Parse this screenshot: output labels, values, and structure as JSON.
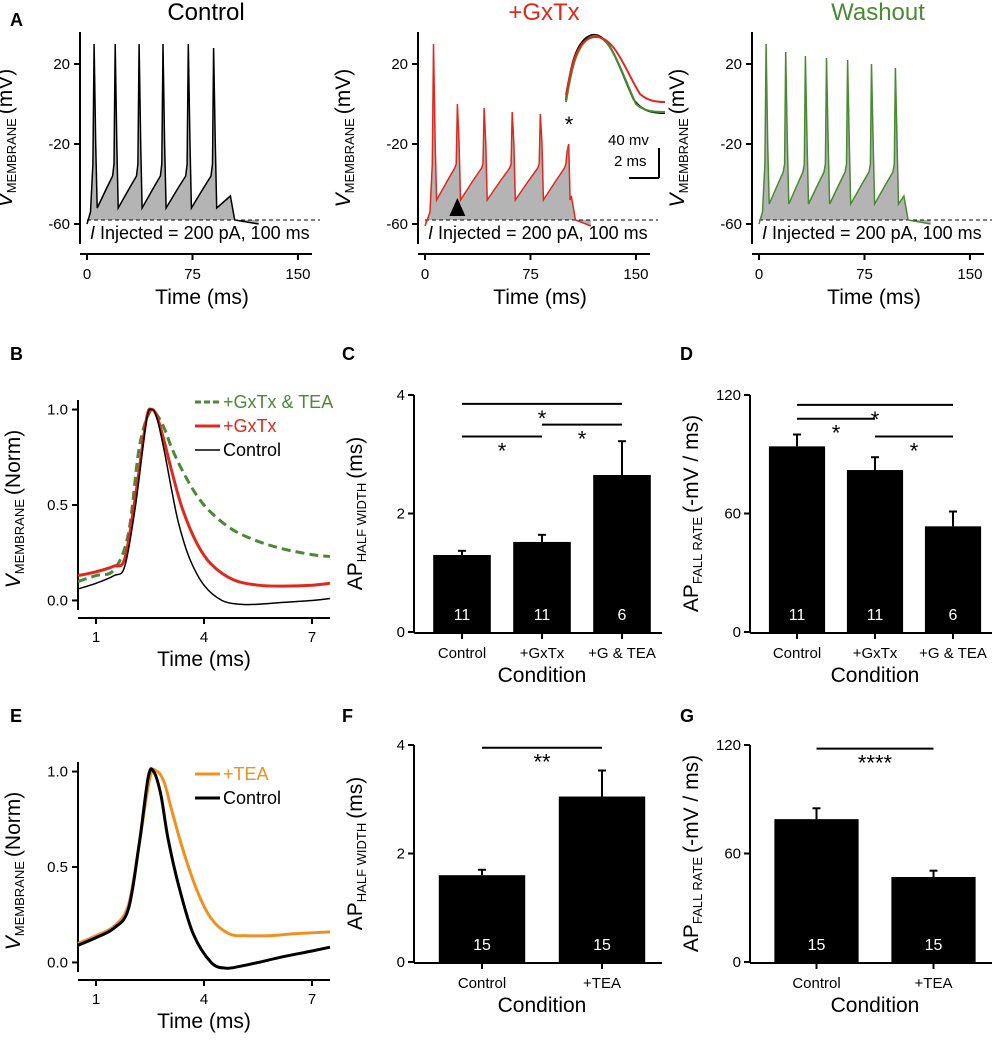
{
  "colors": {
    "control": "#000000",
    "gxtx": "#e0281e",
    "washout": "#4a8a32",
    "tea": "#f0901e",
    "fill": "#b4b4b4"
  },
  "chart_data": [
    {
      "panel": "A",
      "type": "line",
      "title": "Control",
      "title_color": "#000000",
      "color": "#000000",
      "xlabel": "Time (ms)",
      "ylabel": "V",
      "ylabel_sub": "MEMBRANE",
      "ylabel_unit": "(mV)",
      "xlim": [
        -5,
        160
      ],
      "ylim": [
        -70,
        36
      ],
      "xticks": [
        0,
        75,
        150
      ],
      "yticks": [
        20,
        -20,
        -60
      ],
      "xtick_labels": [
        "0",
        "75",
        "150"
      ],
      "ytick_labels": [
        "20",
        "-20",
        "-60"
      ],
      "dashed_reference_mV": -58,
      "annotation": "I Injected = 200 pA, 100 ms",
      "spike_times_ms": [
        5,
        20,
        37,
        54,
        72,
        90
      ],
      "spike_peaks_mV": [
        30,
        30,
        30,
        30,
        30,
        28
      ],
      "trough_mV": -50,
      "end_ms": 102,
      "after_ms": 122,
      "rest_mV": -60
    },
    {
      "panel": "A2",
      "type": "line",
      "title": "+GxTx",
      "title_color": "#e0281e",
      "color": "#e0281e",
      "xlabel": "Time (ms)",
      "ylabel": "V",
      "ylabel_sub": "MEMBRANE",
      "ylabel_unit": "(mV)",
      "xlim": [
        -5,
        160
      ],
      "ylim": [
        -70,
        36
      ],
      "xticks": [
        0,
        75,
        150
      ],
      "yticks": [
        20,
        -20,
        -60
      ],
      "xtick_labels": [
        "0",
        "75",
        "150"
      ],
      "ytick_labels": [
        "20",
        "-20",
        "-60"
      ],
      "dashed_reference_mV": -58,
      "annotation": "I Injected = 200 pA, 100 ms",
      "spike_times_ms": [
        6,
        23,
        42,
        62,
        82,
        101
      ],
      "spike_peaks_mV": [
        30,
        0,
        -2,
        -4,
        -5,
        -24
      ],
      "trough_mV": -46,
      "end_ms": 104,
      "after_ms": 118,
      "rest_mV": -61,
      "asterisk": "*",
      "scale_bar": {
        "v": "40 mv",
        "t": "2 ms"
      }
    },
    {
      "panel": "A3",
      "type": "line",
      "title": "Washout",
      "title_color": "#4a8a32",
      "color": "#4a8a32",
      "xlabel": "Time (ms)",
      "ylabel": "V",
      "ylabel_sub": "MEMBRANE",
      "ylabel_unit": "(mV)",
      "xlim": [
        -5,
        160
      ],
      "ylim": [
        -70,
        36
      ],
      "xticks": [
        0,
        75,
        150
      ],
      "yticks": [
        20,
        -20,
        -60
      ],
      "xtick_labels": [
        "0",
        "75",
        "150"
      ],
      "ytick_labels": [
        "20",
        "-20",
        "-60"
      ],
      "dashed_reference_mV": -58,
      "annotation": "I Injected = 200 pA, 100 ms",
      "spike_times_ms": [
        5,
        19,
        33,
        48,
        63,
        80,
        97
      ],
      "spike_peaks_mV": [
        30,
        26,
        24,
        23,
        22,
        20,
        18
      ],
      "trough_mV": -48,
      "end_ms": 103,
      "after_ms": 122,
      "rest_mV": -60
    },
    {
      "panel": "B",
      "type": "line",
      "xlabel": "Time (ms)",
      "ylabel": "V",
      "ylabel_sub": "MEMBRANE",
      "ylabel_unit": "(Norm)",
      "xlim": [
        0.5,
        7.5
      ],
      "ylim": [
        -0.05,
        1.05
      ],
      "xticks": [
        1,
        4,
        7
      ],
      "yticks": [
        0.0,
        0.5,
        1.0
      ],
      "xtick_labels": [
        "1",
        "4",
        "7"
      ],
      "ytick_labels": [
        "0.0",
        "0.5",
        "1.0"
      ],
      "series": [
        {
          "name": "+GxTx & TEA",
          "color": "#4a8a32",
          "dashed": true,
          "width": 3,
          "x": [
            0.5,
            1.0,
            1.5,
            1.9,
            2.2,
            2.5,
            2.7,
            2.9,
            3.1,
            3.4,
            3.8,
            4.2,
            4.8,
            5.5,
            6.2,
            7.0,
            7.5
          ],
          "y": [
            0.1,
            0.13,
            0.16,
            0.35,
            0.8,
            0.99,
            0.97,
            0.9,
            0.8,
            0.68,
            0.55,
            0.46,
            0.37,
            0.31,
            0.27,
            0.24,
            0.23
          ]
        },
        {
          "name": "+GxTx",
          "color": "#e0281e",
          "dashed": false,
          "width": 3,
          "x": [
            0.5,
            1.0,
            1.5,
            1.8,
            2.1,
            2.4,
            2.55,
            2.7,
            2.9,
            3.1,
            3.4,
            3.8,
            4.2,
            4.8,
            5.5,
            6.2,
            7.0,
            7.5
          ],
          "y": [
            0.13,
            0.15,
            0.18,
            0.22,
            0.55,
            0.95,
            1.0,
            0.96,
            0.83,
            0.68,
            0.48,
            0.3,
            0.19,
            0.11,
            0.08,
            0.075,
            0.08,
            0.09
          ]
        },
        {
          "name": "Control",
          "color": "#000000",
          "dashed": false,
          "width": 1.5,
          "x": [
            0.5,
            1.0,
            1.5,
            1.8,
            2.1,
            2.4,
            2.55,
            2.7,
            2.9,
            3.1,
            3.3,
            3.6,
            4.0,
            4.5,
            5.0,
            5.5,
            6.2,
            7.0,
            7.5
          ],
          "y": [
            0.06,
            0.09,
            0.13,
            0.18,
            0.5,
            0.94,
            1.0,
            0.95,
            0.78,
            0.58,
            0.4,
            0.22,
            0.08,
            0.0,
            -0.02,
            -0.02,
            -0.01,
            0.0,
            0.01
          ]
        }
      ]
    },
    {
      "panel": "C",
      "type": "bar",
      "xlabel": "Condition",
      "ylabel": "AP",
      "ylabel_sub": "HALF WIDTH",
      "ylabel_unit": "(ms)",
      "ylim": [
        0,
        4
      ],
      "yticks": [
        0,
        2,
        4
      ],
      "ytick_labels": [
        "0",
        "2",
        "4"
      ],
      "categories": [
        "Control",
        "+GxTx",
        "+G & TEA"
      ],
      "values": [
        1.3,
        1.52,
        2.65
      ],
      "errors": [
        0.07,
        0.12,
        0.57
      ],
      "n": [
        "11",
        "11",
        "6"
      ],
      "significance": [
        {
          "from": 0,
          "to": 2,
          "label": "*",
          "level": 3.85
        },
        {
          "from": 1,
          "to": 2,
          "label": "*",
          "level": 3.5
        },
        {
          "from": 0,
          "to": 1,
          "label": "*",
          "level": 3.3
        }
      ]
    },
    {
      "panel": "D",
      "type": "bar",
      "xlabel": "Condition",
      "ylabel": "AP",
      "ylabel_sub": "FALL RATE",
      "ylabel_unit": "(-mV / ms)",
      "ylim": [
        0,
        120
      ],
      "yticks": [
        0,
        60,
        120
      ],
      "ytick_labels": [
        "0",
        "60",
        "120"
      ],
      "categories": [
        "Control",
        "+GxTx",
        "+G & TEA"
      ],
      "values": [
        94,
        82,
        53.5
      ],
      "errors": [
        6,
        6.5,
        7.5
      ],
      "n": [
        "11",
        "11",
        "6"
      ],
      "significance": [
        {
          "from": 0,
          "to": 2,
          "label": "*",
          "level": 115
        },
        {
          "from": 0,
          "to": 1,
          "label": "*",
          "level": 108
        },
        {
          "from": 1,
          "to": 2,
          "label": "*",
          "level": 99
        }
      ]
    },
    {
      "panel": "E",
      "type": "line",
      "xlabel": "Time (ms)",
      "ylabel": "V",
      "ylabel_sub": "MEMBRANE",
      "ylabel_unit": "(Norm)",
      "xlim": [
        0.5,
        7.5
      ],
      "ylim": [
        -0.05,
        1.05
      ],
      "xticks": [
        1,
        4,
        7
      ],
      "yticks": [
        0.0,
        0.5,
        1.0
      ],
      "xtick_labels": [
        "1",
        "4",
        "7"
      ],
      "ytick_labels": [
        "0.0",
        "0.5",
        "1.0"
      ],
      "series": [
        {
          "name": "+TEA",
          "color": "#f0901e",
          "dashed": false,
          "width": 3,
          "x": [
            0.5,
            1.0,
            1.5,
            1.9,
            2.2,
            2.5,
            2.7,
            2.9,
            3.1,
            3.4,
            3.8,
            4.2,
            4.7,
            5.2,
            5.8,
            6.5,
            7.5
          ],
          "y": [
            0.1,
            0.14,
            0.19,
            0.3,
            0.62,
            0.97,
            1.0,
            0.94,
            0.8,
            0.6,
            0.38,
            0.23,
            0.15,
            0.14,
            0.14,
            0.15,
            0.16
          ]
        },
        {
          "name": "Control",
          "color": "#000000",
          "dashed": false,
          "width": 3,
          "x": [
            0.5,
            1.0,
            1.5,
            1.9,
            2.2,
            2.45,
            2.6,
            2.8,
            3.0,
            3.3,
            3.7,
            4.2,
            4.6,
            5.0,
            5.5,
            6.2,
            7.0,
            7.5
          ],
          "y": [
            0.09,
            0.13,
            0.18,
            0.28,
            0.62,
            0.97,
            1.0,
            0.88,
            0.65,
            0.4,
            0.15,
            0.0,
            -0.03,
            -0.02,
            0.0,
            0.03,
            0.06,
            0.08
          ]
        }
      ]
    },
    {
      "panel": "F",
      "type": "bar",
      "xlabel": "Condition",
      "ylabel": "AP",
      "ylabel_sub": "HALF WIDTH",
      "ylabel_unit": "(ms)",
      "ylim": [
        0,
        4
      ],
      "yticks": [
        0,
        2,
        4
      ],
      "ytick_labels": [
        "0",
        "2",
        "4"
      ],
      "categories": [
        "Control",
        "+TEA"
      ],
      "values": [
        1.6,
        3.05
      ],
      "errors": [
        0.1,
        0.48
      ],
      "n": [
        "15",
        "15"
      ],
      "significance": [
        {
          "from": 0,
          "to": 1,
          "label": "**",
          "level": 3.95
        }
      ]
    },
    {
      "panel": "G",
      "type": "bar",
      "xlabel": "Condition",
      "ylabel": "AP",
      "ylabel_sub": "FALL RATE",
      "ylabel_unit": "(-mV / ms)",
      "ylim": [
        0,
        120
      ],
      "yticks": [
        0,
        60,
        120
      ],
      "ytick_labels": [
        "0",
        "60",
        "120"
      ],
      "categories": [
        "Control",
        "+TEA"
      ],
      "values": [
        79,
        47
      ],
      "errors": [
        6,
        3.5
      ],
      "n": [
        "15",
        "15"
      ],
      "significance": [
        {
          "from": 0,
          "to": 1,
          "label": "****",
          "level": 118
        }
      ]
    }
  ]
}
